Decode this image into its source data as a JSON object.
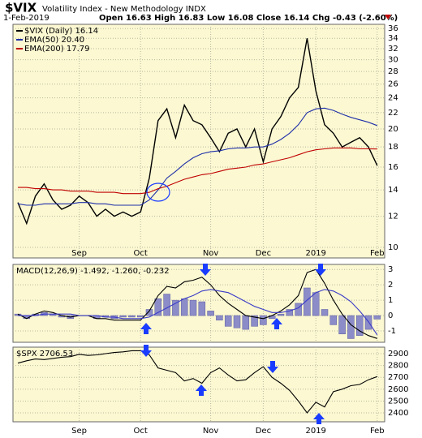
{
  "chart_data": [
    {
      "type": "line",
      "symbol": "$VIX",
      "title": "Volatility Index - New Methodology INDX",
      "date": "1-Feb-2019",
      "ohlc": "Open 16.63  High 16.83  Low 16.08  Close 16.14  Chg -0.43 (-2.60%)",
      "categories": [
        null,
        null,
        null,
        null,
        null,
        null,
        null,
        "Sep",
        null,
        null,
        null,
        null,
        null,
        null,
        "Oct",
        null,
        null,
        null,
        null,
        null,
        null,
        null,
        "Nov",
        null,
        null,
        null,
        null,
        null,
        "Dec",
        null,
        null,
        null,
        null,
        null,
        "2019",
        null,
        null,
        null,
        null,
        null,
        null,
        "Feb"
      ],
      "log_scale": true,
      "ylim": [
        9.4,
        36.9
      ],
      "yticks": [
        10,
        12,
        14,
        16,
        18,
        20,
        22,
        24,
        26,
        28,
        30,
        32,
        34,
        36
      ],
      "grid": true,
      "legend": "top-left",
      "series": [
        {
          "name": "$VIX (Daily) 16.14",
          "color": "#000000",
          "values": [
            13.0,
            11.5,
            13.5,
            14.5,
            13.2,
            12.5,
            12.8,
            13.5,
            13.0,
            12.0,
            12.5,
            12.0,
            12.3,
            12.0,
            12.3,
            15.0,
            21.0,
            22.5,
            19.0,
            23.0,
            21.0,
            20.5,
            19.0,
            17.5,
            19.5,
            20.0,
            18.0,
            20.0,
            16.5,
            20.0,
            21.5,
            24.0,
            25.5,
            34.0,
            25.0,
            20.5,
            19.5,
            18.0,
            18.5,
            19.0,
            18.0,
            16.14
          ]
        },
        {
          "name": "EMA(50) 20.40",
          "color": "#1f2fa8",
          "values": [
            12.9,
            12.8,
            12.8,
            12.9,
            12.9,
            12.9,
            12.9,
            13.0,
            13.0,
            12.9,
            12.9,
            12.8,
            12.8,
            12.8,
            12.8,
            13.2,
            14.0,
            15.0,
            15.6,
            16.3,
            16.9,
            17.3,
            17.5,
            17.6,
            17.8,
            17.9,
            17.9,
            18.0,
            18.0,
            18.3,
            18.8,
            19.5,
            20.5,
            22.0,
            22.5,
            22.6,
            22.3,
            21.8,
            21.4,
            21.1,
            20.8,
            20.4
          ]
        },
        {
          "name": "EMA(200) 17.79",
          "color": "#c00000",
          "values": [
            14.2,
            14.2,
            14.1,
            14.1,
            14.0,
            14.0,
            13.9,
            13.9,
            13.9,
            13.8,
            13.8,
            13.8,
            13.7,
            13.7,
            13.7,
            13.8,
            14.1,
            14.3,
            14.6,
            14.9,
            15.1,
            15.3,
            15.4,
            15.6,
            15.8,
            15.9,
            16.0,
            16.2,
            16.3,
            16.5,
            16.7,
            16.9,
            17.2,
            17.5,
            17.7,
            17.8,
            17.9,
            17.9,
            17.9,
            17.8,
            17.8,
            17.79
          ]
        }
      ]
    },
    {
      "type": "line",
      "label": "MACD(12,26,9) -1.492, -1.260, -0.232",
      "ylim": [
        -1.74,
        3.33
      ],
      "yticks": [
        3,
        2,
        1,
        0,
        -1
      ],
      "grid": true,
      "series": [
        {
          "type": "bar",
          "color": "#8c8cc8",
          "values": [
            0.1,
            -0.2,
            0.1,
            0.2,
            0.1,
            -0.1,
            -0.2,
            0.0,
            0.0,
            -0.2,
            -0.1,
            -0.2,
            -0.1,
            -0.1,
            -0.1,
            0.4,
            1.1,
            1.4,
            1.0,
            1.1,
            1.0,
            0.9,
            0.3,
            -0.3,
            -0.7,
            -0.8,
            -0.9,
            -0.7,
            -0.6,
            -0.2,
            0.1,
            0.4,
            0.8,
            1.8,
            1.5,
            0.4,
            -0.6,
            -1.2,
            -1.5,
            -1.3,
            -0.9,
            -0.232
          ]
        },
        {
          "color": "#000000",
          "values": [
            0.1,
            -0.2,
            0.1,
            0.3,
            0.2,
            0.0,
            -0.1,
            0.0,
            0.0,
            -0.2,
            -0.2,
            -0.3,
            -0.3,
            -0.3,
            -0.3,
            0.3,
            1.3,
            1.9,
            1.8,
            2.2,
            2.3,
            2.5,
            2.0,
            1.3,
            0.8,
            0.4,
            0.0,
            -0.1,
            -0.2,
            0.0,
            0.3,
            0.7,
            1.3,
            2.8,
            3.0,
            2.1,
            1.0,
            0.1,
            -0.6,
            -1.0,
            -1.3,
            -1.492
          ]
        },
        {
          "color": "#3c3cc8",
          "values": [
            0.0,
            0.0,
            0.0,
            0.1,
            0.1,
            0.1,
            0.1,
            0.0,
            0.0,
            0.0,
            -0.1,
            -0.1,
            -0.2,
            -0.2,
            -0.2,
            -0.1,
            0.2,
            0.5,
            0.8,
            1.1,
            1.3,
            1.6,
            1.7,
            1.6,
            1.5,
            1.2,
            0.9,
            0.6,
            0.4,
            0.2,
            0.2,
            0.3,
            0.5,
            1.0,
            1.5,
            1.7,
            1.6,
            1.3,
            0.9,
            0.3,
            -0.4,
            -1.26
          ]
        }
      ]
    },
    {
      "type": "line",
      "label": "$SPX 2706.53",
      "ylim": [
        2325,
        2955
      ],
      "yticks": [
        2900,
        2800,
        2700,
        2600,
        2500,
        2400
      ],
      "grid": true,
      "series": [
        {
          "color": "#000000",
          "values": [
            2820,
            2840,
            2855,
            2850,
            2860,
            2870,
            2875,
            2895,
            2885,
            2890,
            2900,
            2910,
            2915,
            2925,
            2925,
            2890,
            2780,
            2760,
            2740,
            2670,
            2690,
            2650,
            2740,
            2780,
            2720,
            2670,
            2680,
            2740,
            2790,
            2700,
            2650,
            2590,
            2500,
            2400,
            2490,
            2450,
            2580,
            2600,
            2630,
            2640,
            2680,
            2706.53
          ]
        }
      ]
    }
  ]
}
